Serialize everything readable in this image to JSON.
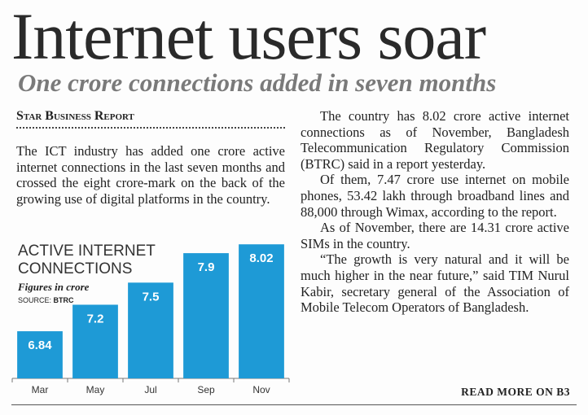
{
  "headline": "Internet users soar",
  "subheadline": "One crore connections added in seven months",
  "byline": "Star Business Report",
  "left_column": [
    "The ICT industry has added one crore active internet connections in the last seven months and crossed the eight crore-mark on the back of the growing use of digital platforms in the country."
  ],
  "right_column": [
    "The country has 8.02 crore active internet connections as of November, Bangladesh Telecommunication Regulatory Commission (BTRC) said in a report yesterday.",
    "Of them, 7.47 crore use internet on mobile phones, 53.42 lakh through broadband lines and 88,000 through Wimax, according to the report.",
    "As of November, there are 14.31 crore active SIMs in the country.",
    "“The growth is very natural and it will be much higher in the near future,” said TIM Nurul Kabir, secretary general of the Association of Mobile Telecom Operators of Bangladesh."
  ],
  "read_more": "READ MORE ON B3",
  "chart_data": {
    "type": "bar",
    "title": "ACTIVE INTERNET CONNECTIONS",
    "subtitle": "Figures in crore",
    "source_label": "SOURCE:",
    "source": "BTRC",
    "categories": [
      "Mar",
      "May",
      "Jul",
      "Sep",
      "Nov"
    ],
    "values": [
      6.84,
      7.2,
      7.5,
      7.9,
      8.02
    ],
    "color": "#1e9ad6",
    "ylim": [
      6.2,
      8.1
    ]
  }
}
